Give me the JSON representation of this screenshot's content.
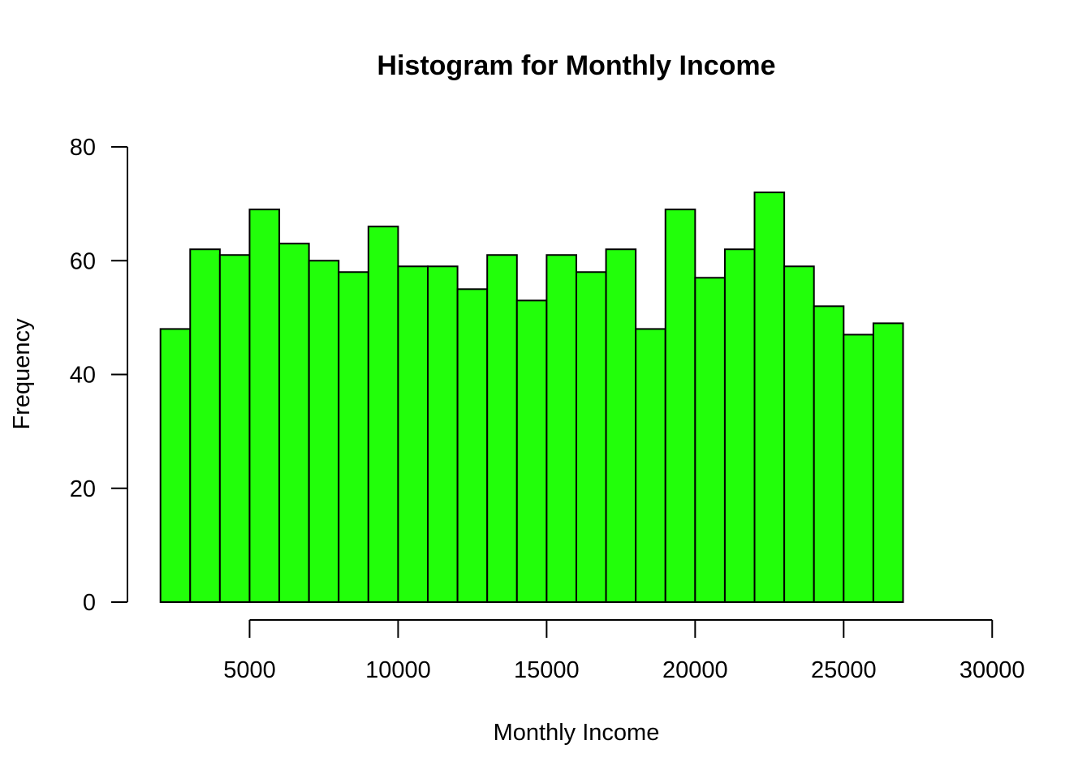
{
  "chart_data": {
    "type": "bar",
    "title": "Histogram for Monthly Income",
    "xlabel": "Monthly Income",
    "ylabel": "Frequency",
    "bar_color": "#22ff0a",
    "bin_width": 1000,
    "bin_edges": [
      2000,
      3000,
      4000,
      5000,
      6000,
      7000,
      8000,
      9000,
      10000,
      11000,
      12000,
      13000,
      14000,
      15000,
      16000,
      17000,
      18000,
      19000,
      20000,
      21000,
      22000,
      23000,
      24000,
      25000,
      26000,
      27000
    ],
    "values": [
      48,
      62,
      61,
      69,
      63,
      60,
      58,
      66,
      59,
      59,
      55,
      61,
      53,
      61,
      58,
      62,
      48,
      69,
      57,
      62,
      72,
      59,
      52,
      47,
      49
    ],
    "xlim": [
      0,
      30000
    ],
    "ylim": [
      0,
      80
    ],
    "xticks": [
      5000,
      10000,
      15000,
      20000,
      25000,
      30000
    ],
    "yticks": [
      0,
      20,
      40,
      60,
      80
    ],
    "xtick_labels": [
      "5000",
      "10000",
      "15000",
      "20000",
      "25000",
      "30000"
    ],
    "ytick_labels": [
      "0",
      "20",
      "40",
      "60",
      "80"
    ]
  }
}
